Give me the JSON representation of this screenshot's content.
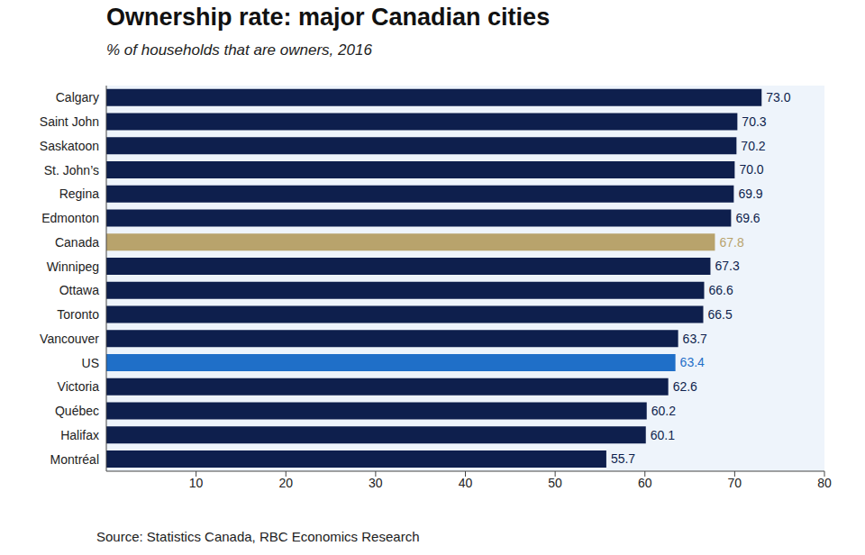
{
  "chart_data": {
    "type": "bar",
    "orientation": "horizontal",
    "title": "Ownership rate: major Canadian cities",
    "subtitle": "% of households that are owners, 2016",
    "source": "Source: Statistics Canada, RBC Economics Research",
    "categories": [
      "Calgary",
      "Saint John",
      "Saskatoon",
      "St. John’s",
      "Regina",
      "Edmonton",
      "Canada",
      "Winnipeg",
      "Ottawa",
      "Toronto",
      "Vancouver",
      "US",
      "Victoria",
      "Québec",
      "Halifax",
      "Montréal"
    ],
    "values": [
      73.0,
      70.3,
      70.2,
      70.0,
      69.9,
      69.6,
      67.8,
      67.3,
      66.6,
      66.5,
      63.7,
      63.4,
      62.6,
      60.2,
      60.1,
      55.7
    ],
    "value_labels": [
      "73.0",
      "70.3",
      "70.2",
      "70.0",
      "69.9",
      "69.6",
      "67.8",
      "67.3",
      "66.6",
      "66.5",
      "63.7",
      "63.4",
      "62.6",
      "60.2",
      "60.1",
      "55.7"
    ],
    "colors": [
      "#0e1f4d",
      "#0e1f4d",
      "#0e1f4d",
      "#0e1f4d",
      "#0e1f4d",
      "#0e1f4d",
      "#b8a36c",
      "#0e1f4d",
      "#0e1f4d",
      "#0e1f4d",
      "#0e1f4d",
      "#1f6fc8",
      "#0e1f4d",
      "#0e1f4d",
      "#0e1f4d",
      "#0e1f4d"
    ],
    "xlim": [
      0,
      80
    ],
    "xticks": [
      10,
      20,
      30,
      40,
      50,
      60,
      70,
      80
    ],
    "grid": false,
    "data_labels": true
  }
}
